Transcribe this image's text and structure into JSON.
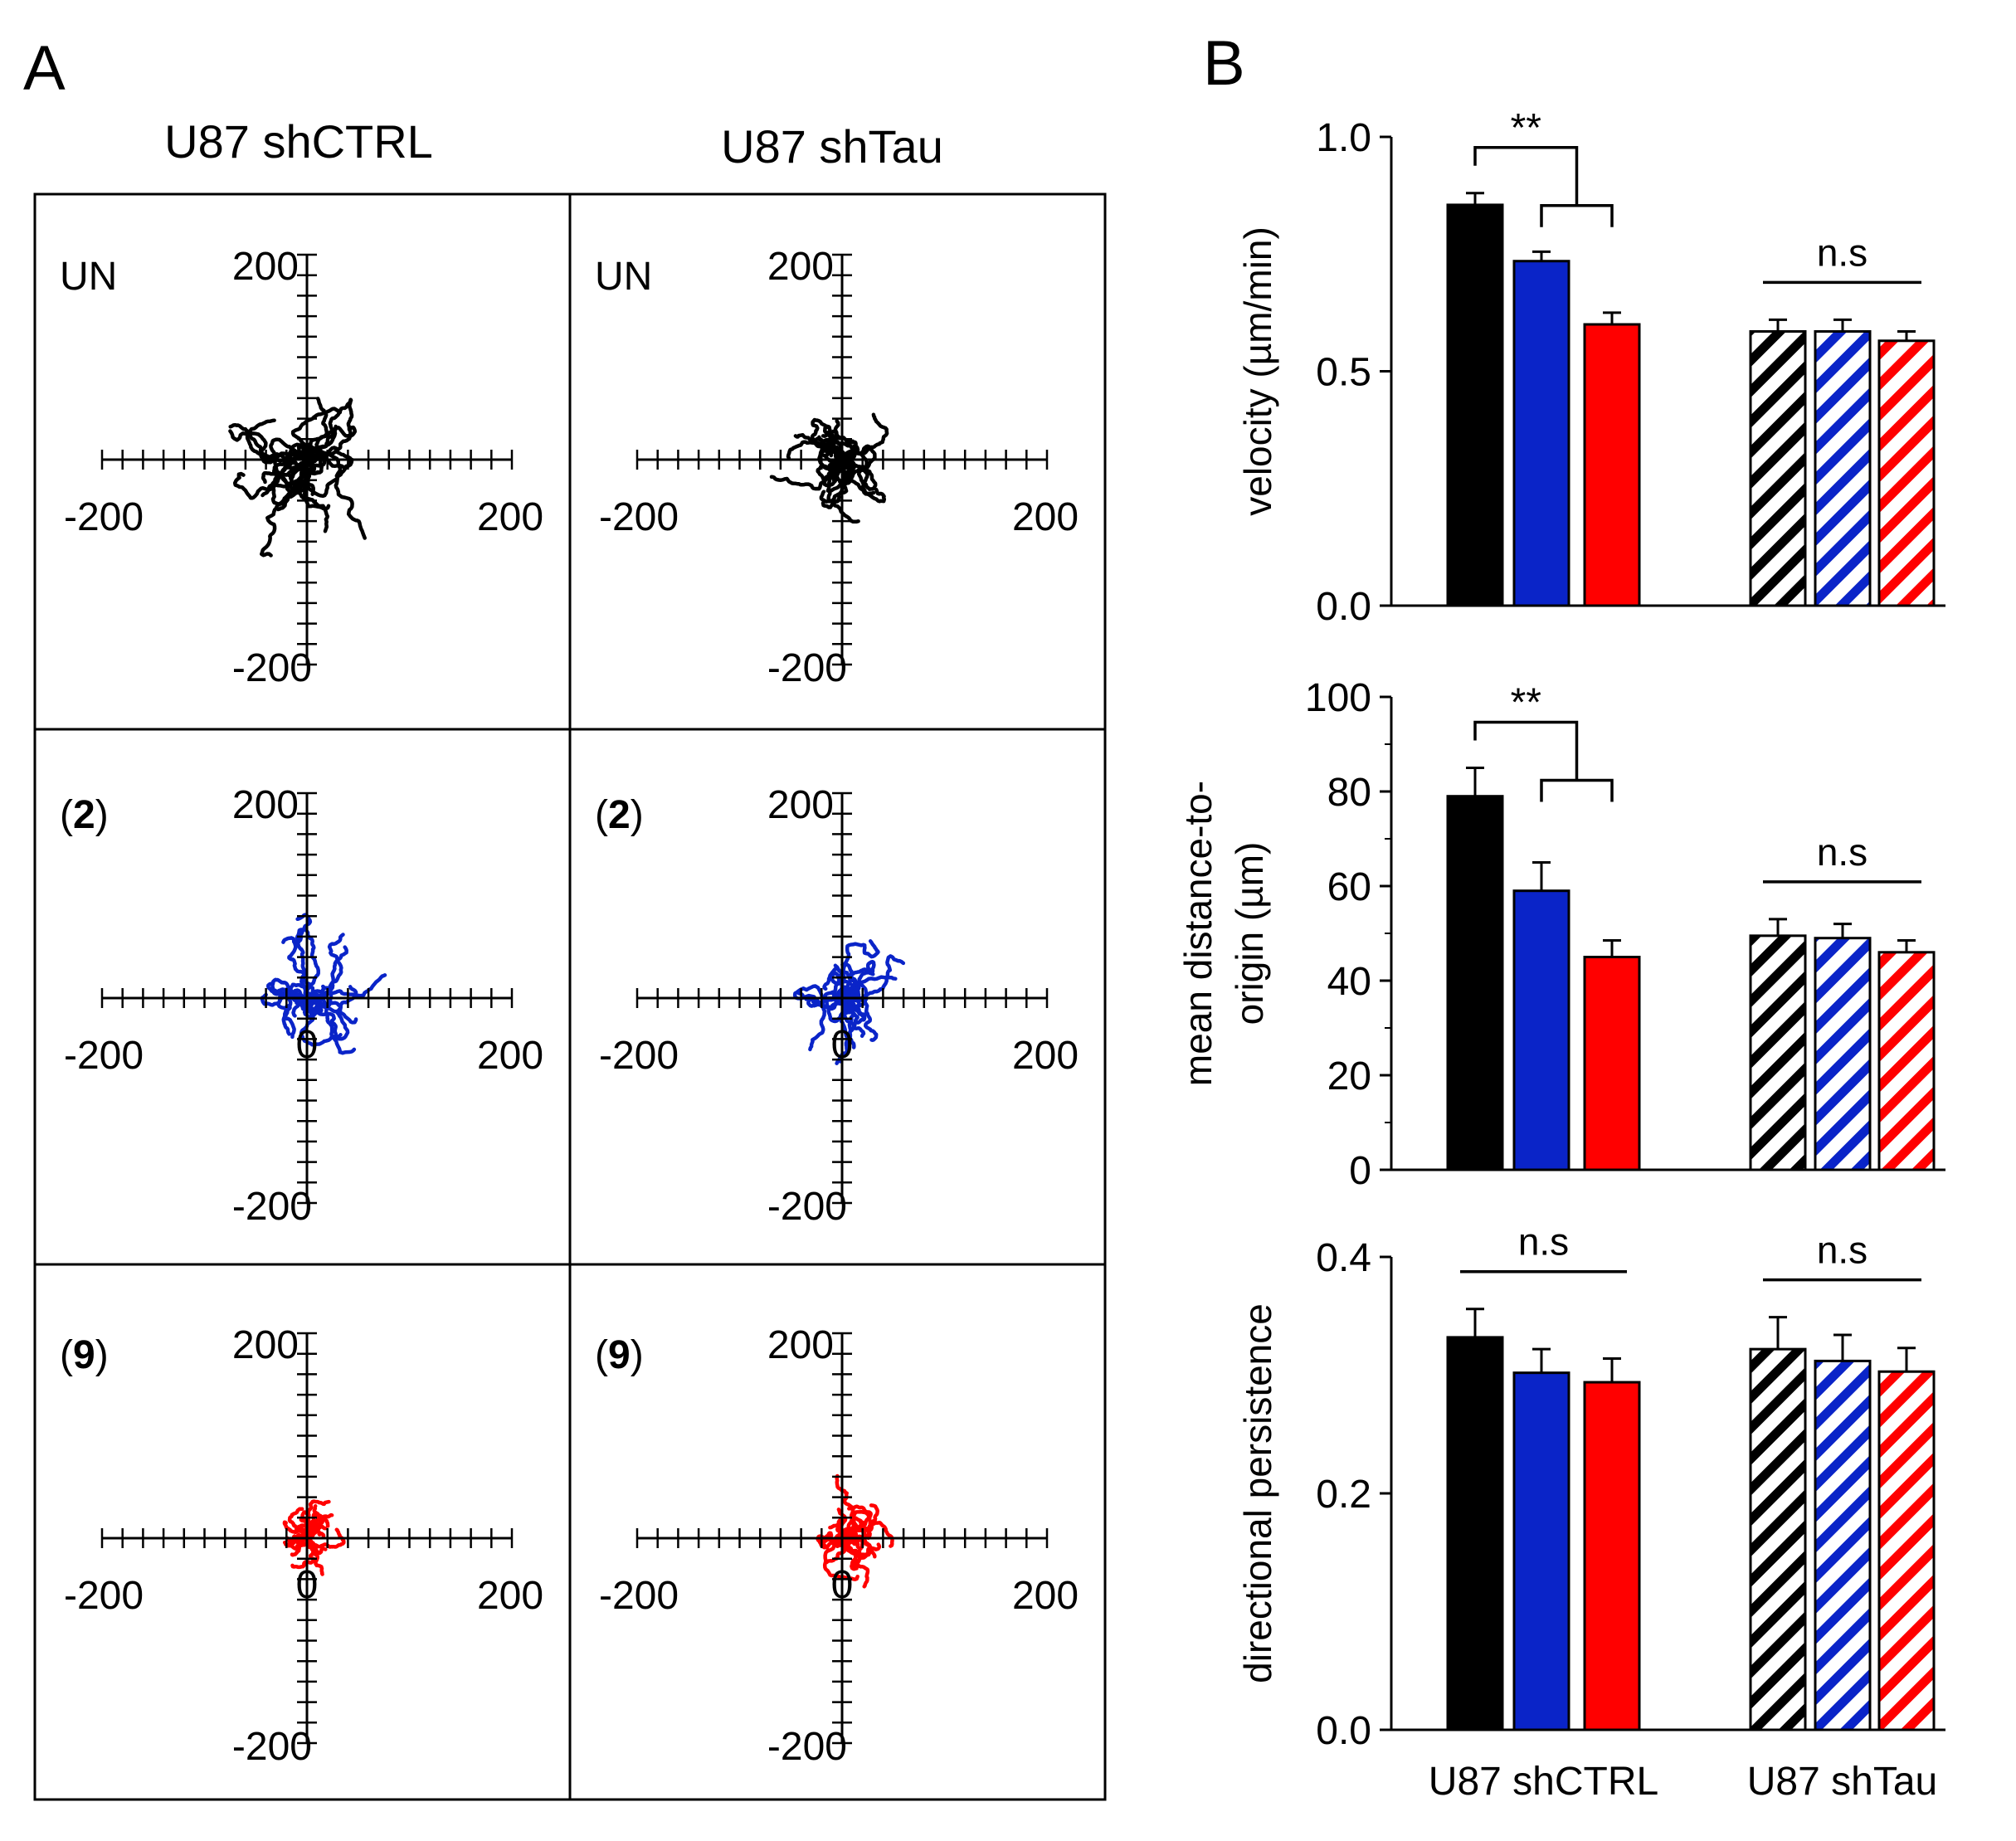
{
  "colors": {
    "un": "#000000",
    "compound2": "#0a24c8",
    "compound9": "#ff0000",
    "axis": "#000000"
  },
  "panel_a": {
    "letter": "A",
    "column_titles": [
      "U87 shCTRL",
      "U87 shTau"
    ],
    "row_labels": [
      {
        "plain": "UN",
        "bold": ""
      },
      {
        "plain": "",
        "bold": "2"
      },
      {
        "plain": "",
        "bold": "9"
      }
    ],
    "tick_labels": {
      "pos": "200",
      "neg": "-200",
      "zero": "0"
    },
    "plots": [
      {
        "row": 0,
        "col": 0,
        "condition": "UN",
        "series_color": "un",
        "n_tracks": 24,
        "spread": 60
      },
      {
        "row": 0,
        "col": 1,
        "condition": "UN",
        "series_color": "un",
        "n_tracks": 24,
        "spread": 40
      },
      {
        "row": 1,
        "col": 0,
        "condition": "2",
        "series_color": "compound2",
        "n_tracks": 22,
        "spread": 42
      },
      {
        "row": 1,
        "col": 1,
        "condition": "2",
        "series_color": "compound2",
        "n_tracks": 22,
        "spread": 46
      },
      {
        "row": 2,
        "col": 0,
        "condition": "9",
        "series_color": "compound9",
        "n_tracks": 22,
        "spread": 26
      },
      {
        "row": 2,
        "col": 1,
        "condition": "9",
        "series_color": "compound9",
        "n_tracks": 22,
        "spread": 34
      }
    ]
  },
  "panel_b_letter": "B",
  "chart_data": [
    {
      "type": "bar",
      "title": "",
      "ylabel": "velocity (µm/min)",
      "ylabel_lines": [
        "velocity (µm/min)"
      ],
      "ylim": [
        0,
        1.0
      ],
      "yticks": [
        0.0,
        0.5,
        1.0
      ],
      "ytick_labels": [
        "0.0",
        "0.5",
        "1.0"
      ],
      "categories": [
        "U87 shCTRL",
        "U87 shTau"
      ],
      "series": [
        {
          "name": "UN",
          "color": "un",
          "values": [
            0.855,
            0.585
          ],
          "errors": [
            0.025,
            0.025
          ]
        },
        {
          "name": "2",
          "color": "compound2",
          "values": [
            0.735,
            0.585
          ],
          "errors": [
            0.02,
            0.025
          ]
        },
        {
          "name": "9",
          "color": "compound9",
          "values": [
            0.6,
            0.565
          ],
          "errors": [
            0.025,
            0.02
          ]
        }
      ],
      "annotations": [
        {
          "text": "**",
          "type": "bracket",
          "group": 0
        },
        {
          "text": "n.s",
          "type": "line",
          "group": 1
        }
      ]
    },
    {
      "type": "bar",
      "title": "",
      "ylabel": "mean distance-to-origin (µm)",
      "ylabel_lines": [
        "mean distance-to-",
        "origin (µm)"
      ],
      "ylim": [
        0,
        100
      ],
      "yticks": [
        0,
        20,
        40,
        60,
        80,
        100
      ],
      "ytick_labels": [
        "0",
        "20",
        "40",
        "60",
        "80",
        "100"
      ],
      "categories": [
        "U87 shCTRL",
        "U87 shTau"
      ],
      "series": [
        {
          "name": "UN",
          "color": "un",
          "values": [
            79,
            49.5
          ],
          "errors": [
            6,
            3.5
          ]
        },
        {
          "name": "2",
          "color": "compound2",
          "values": [
            59,
            49
          ],
          "errors": [
            6,
            3
          ]
        },
        {
          "name": "9",
          "color": "compound9",
          "values": [
            45,
            46
          ],
          "errors": [
            3.5,
            2.5
          ]
        }
      ],
      "annotations": [
        {
          "text": "**",
          "type": "bracket",
          "group": 0
        },
        {
          "text": "n.s",
          "type": "line",
          "group": 1
        }
      ]
    },
    {
      "type": "bar",
      "title": "",
      "ylabel": "directional persistence",
      "ylabel_lines": [
        "directional persistence"
      ],
      "ylim": [
        0,
        0.4
      ],
      "yticks": [
        0.0,
        0.2,
        0.4
      ],
      "ytick_labels": [
        "0.0",
        "0.2",
        "0.4"
      ],
      "categories": [
        "U87 shCTRL",
        "U87 shTau"
      ],
      "series": [
        {
          "name": "UN",
          "color": "un",
          "values": [
            0.332,
            0.322
          ],
          "errors": [
            0.024,
            0.027
          ]
        },
        {
          "name": "2",
          "color": "compound2",
          "values": [
            0.302,
            0.312
          ],
          "errors": [
            0.02,
            0.022
          ]
        },
        {
          "name": "9",
          "color": "compound9",
          "values": [
            0.294,
            0.303
          ],
          "errors": [
            0.02,
            0.02
          ]
        }
      ],
      "annotations": [
        {
          "text": "n.s",
          "type": "line",
          "group": 0
        },
        {
          "text": "n.s",
          "type": "line",
          "group": 1
        }
      ]
    }
  ]
}
